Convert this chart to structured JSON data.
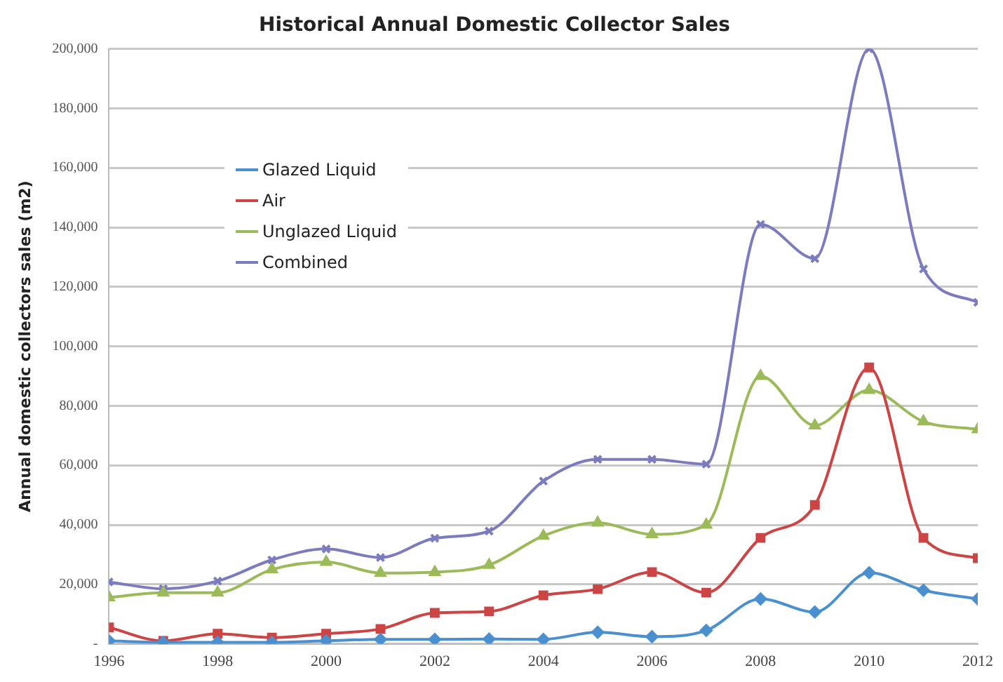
{
  "chart_data": {
    "type": "line",
    "title": "Historical Annual Domestic Collector Sales",
    "ylabel": "Annual domestic collectors sales (m2)",
    "x": [
      1996,
      1997,
      1998,
      1999,
      2000,
      2001,
      2002,
      2003,
      2004,
      2005,
      2006,
      2007,
      2008,
      2009,
      2010,
      2011,
      2012
    ],
    "xlim": [
      1996,
      2012
    ],
    "xticks": [
      1996,
      1998,
      2000,
      2002,
      2004,
      2006,
      2008,
      2010,
      2012
    ],
    "series": [
      {
        "name": "Glazed Liquid",
        "color": "#4a8fd0",
        "marker": "diamond",
        "values": [
          1000,
          500,
          500,
          500,
          1000,
          1500,
          1500,
          1600,
          1500,
          3900,
          2400,
          4500,
          15100,
          10700,
          23900,
          18000,
          15100
        ]
      },
      {
        "name": "Air",
        "color": "#cc4444",
        "marker": "square",
        "values": [
          5500,
          1000,
          3400,
          2100,
          3400,
          5000,
          10400,
          10900,
          16300,
          18400,
          24100,
          17200,
          35600,
          46700,
          92900,
          35600,
          28800
        ]
      },
      {
        "name": "Unglazed Liquid",
        "color": "#9bbb59",
        "marker": "triangle",
        "values": [
          15600,
          17200,
          17200,
          25000,
          27500,
          23800,
          24100,
          26500,
          36300,
          40700,
          36800,
          40000,
          90000,
          73400,
          85300,
          74700,
          72100
        ]
      },
      {
        "name": "Combined",
        "color": "#7b7bc0",
        "marker": "cross",
        "values": [
          20800,
          18500,
          21100,
          28200,
          31900,
          29000,
          35500,
          37900,
          54700,
          62000,
          62000,
          60400,
          141000,
          129500,
          200000,
          126000,
          114800
        ]
      }
    ],
    "ylim": [
      0,
      200000
    ],
    "yticks": [
      {
        "value": 0,
        "label": "-"
      },
      {
        "value": 20000,
        "label": "20,000"
      },
      {
        "value": 40000,
        "label": "40,000"
      },
      {
        "value": 60000,
        "label": "60,000"
      },
      {
        "value": 80000,
        "label": "80,000"
      },
      {
        "value": 100000,
        "label": "100,000"
      },
      {
        "value": 120000,
        "label": "120,000"
      },
      {
        "value": 140000,
        "label": "140,000"
      },
      {
        "value": 160000,
        "label": "160,000"
      },
      {
        "value": 180000,
        "label": "180,000"
      },
      {
        "value": 200000,
        "label": "200,000"
      }
    ],
    "grid": "y",
    "legend": "top left",
    "line_style": "solid"
  }
}
